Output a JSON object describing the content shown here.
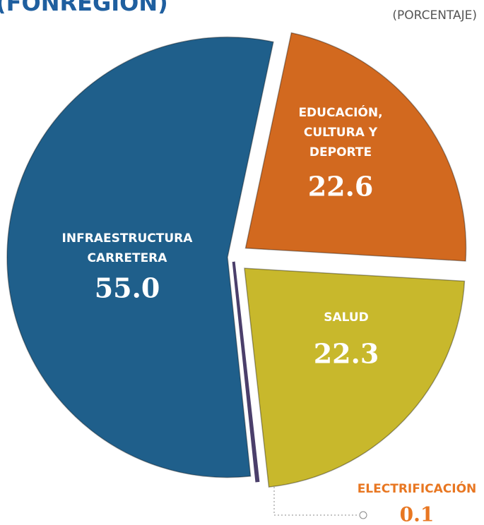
{
  "chart_data": {
    "type": "pie",
    "title": "(FONREGIÓN)",
    "subtitle": "(PORCENTAJE)",
    "categories": [
      [
        "EDUCACIÓN,",
        "CULTURA Y",
        "DEPORTE"
      ],
      [
        "SALUD"
      ],
      [
        "ELECTRIFICACIÓN"
      ],
      [
        "INFRAESTRUCTURA",
        "CARRETERA"
      ]
    ],
    "values": [
      22.6,
      22.3,
      0.1,
      55.0
    ],
    "value_labels": [
      "22.6",
      "22.3",
      "0.1",
      "55.0"
    ],
    "colors": [
      "#d2691f",
      "#c8b82c",
      "#4b3f6b",
      "#1f5f8b"
    ]
  }
}
